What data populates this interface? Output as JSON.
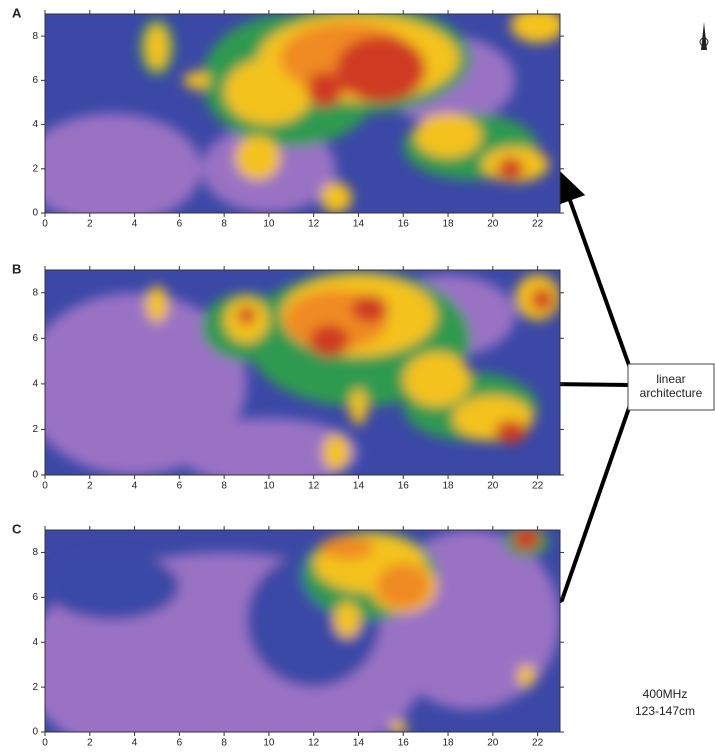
{
  "panels": [
    {
      "label": "A"
    },
    {
      "label": "B"
    },
    {
      "label": "C"
    }
  ],
  "xlim": [
    0,
    23
  ],
  "ylim": [
    0,
    9
  ],
  "x_ticks": [
    0,
    2,
    4,
    6,
    8,
    10,
    12,
    14,
    16,
    18,
    20,
    22
  ],
  "y_ticks": [
    0,
    2,
    4,
    6,
    8
  ],
  "annotation": "linear architecture",
  "frequency": "400MHz",
  "depth": "123-147cm"
}
